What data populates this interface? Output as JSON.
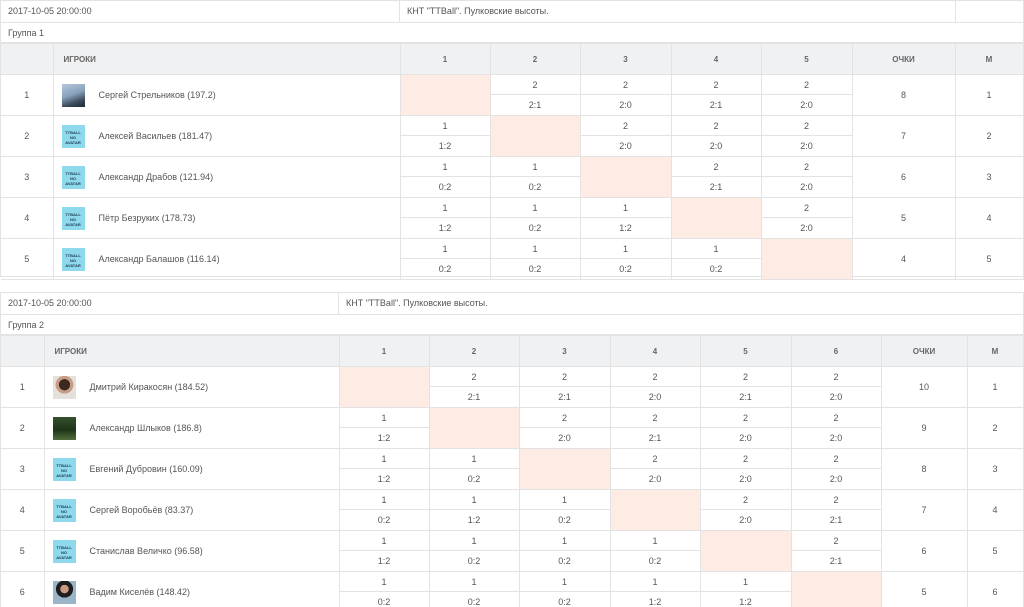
{
  "groups": [
    {
      "date": "2017-10-05 20:00:00",
      "venue": "КНТ \"TTBall\". Пулковские высоты.",
      "group_name": "Группа 1",
      "headers": {
        "players": "ИГРОКИ",
        "cols": [
          "1",
          "2",
          "3",
          "4",
          "5"
        ],
        "points": "ОЧКИ",
        "place": "М"
      },
      "players": [
        {
          "num": "1",
          "name": "Сергей Стрельников (197.2)",
          "avatar": "photo-1",
          "results": [
            null,
            [
              "2",
              "2:1"
            ],
            [
              "2",
              "2:0"
            ],
            [
              "2",
              "2:1"
            ],
            [
              "2",
              "2:0"
            ]
          ],
          "points": "8",
          "place": "1"
        },
        {
          "num": "2",
          "name": "Алексей Васильев (181.47)",
          "avatar": "ttball",
          "results": [
            [
              "1",
              "1:2"
            ],
            null,
            [
              "2",
              "2:0"
            ],
            [
              "2",
              "2:0"
            ],
            [
              "2",
              "2:0"
            ]
          ],
          "points": "7",
          "place": "2"
        },
        {
          "num": "3",
          "name": "Александр Драбов (121.94)",
          "avatar": "ttball",
          "results": [
            [
              "1",
              "0:2"
            ],
            [
              "1",
              "0:2"
            ],
            null,
            [
              "2",
              "2:1"
            ],
            [
              "2",
              "2:0"
            ]
          ],
          "points": "6",
          "place": "3"
        },
        {
          "num": "4",
          "name": "Пётр Безруких (178.73)",
          "avatar": "ttball",
          "results": [
            [
              "1",
              "1:2"
            ],
            [
              "1",
              "0:2"
            ],
            [
              "1",
              "1:2"
            ],
            null,
            [
              "2",
              "2:0"
            ]
          ],
          "points": "5",
          "place": "4"
        },
        {
          "num": "5",
          "name": "Александр Балашов (116.14)",
          "avatar": "ttball",
          "results": [
            [
              "1",
              "0:2"
            ],
            [
              "1",
              "0:2"
            ],
            [
              "1",
              "0:2"
            ],
            [
              "1",
              "0:2"
            ],
            null
          ],
          "points": "4",
          "place": "5"
        }
      ]
    },
    {
      "date": "2017-10-05 20:00:00",
      "venue": "КНТ \"TTBall\". Пулковские высоты.",
      "group_name": "Группа 2",
      "headers": {
        "players": "ИГРОКИ",
        "cols": [
          "1",
          "2",
          "3",
          "4",
          "5",
          "6"
        ],
        "points": "ОЧКИ",
        "place": "М"
      },
      "players": [
        {
          "num": "1",
          "name": "Дмитрий Киракосян (184.52)",
          "avatar": "photo-2",
          "results": [
            null,
            [
              "2",
              "2:1"
            ],
            [
              "2",
              "2:1"
            ],
            [
              "2",
              "2:0"
            ],
            [
              "2",
              "2:1"
            ],
            [
              "2",
              "2:0"
            ]
          ],
          "points": "10",
          "place": "1"
        },
        {
          "num": "2",
          "name": "Александр Шлыков (186.8)",
          "avatar": "photo-3",
          "results": [
            [
              "1",
              "1:2"
            ],
            null,
            [
              "2",
              "2:0"
            ],
            [
              "2",
              "2:1"
            ],
            [
              "2",
              "2:0"
            ],
            [
              "2",
              "2:0"
            ]
          ],
          "points": "9",
          "place": "2"
        },
        {
          "num": "3",
          "name": "Евгений Дубровин (160.09)",
          "avatar": "ttball",
          "results": [
            [
              "1",
              "1:2"
            ],
            [
              "1",
              "0:2"
            ],
            null,
            [
              "2",
              "2:0"
            ],
            [
              "2",
              "2:0"
            ],
            [
              "2",
              "2:0"
            ]
          ],
          "points": "8",
          "place": "3"
        },
        {
          "num": "4",
          "name": "Сергей Воробьёв (83.37)",
          "avatar": "ttball",
          "results": [
            [
              "1",
              "0:2"
            ],
            [
              "1",
              "1:2"
            ],
            [
              "1",
              "0:2"
            ],
            null,
            [
              "2",
              "2:0"
            ],
            [
              "2",
              "2:1"
            ]
          ],
          "points": "7",
          "place": "4"
        },
        {
          "num": "5",
          "name": "Станислав Величко (96.58)",
          "avatar": "ttball",
          "results": [
            [
              "1",
              "1:2"
            ],
            [
              "1",
              "0:2"
            ],
            [
              "1",
              "0:2"
            ],
            [
              "1",
              "0:2"
            ],
            null,
            [
              "2",
              "2:1"
            ]
          ],
          "points": "6",
          "place": "5"
        },
        {
          "num": "6",
          "name": "Вадим Киселёв (148.42)",
          "avatar": "photo-4",
          "results": [
            [
              "1",
              "0:2"
            ],
            [
              "1",
              "0:2"
            ],
            [
              "1",
              "0:2"
            ],
            [
              "1",
              "1:2"
            ],
            [
              "1",
              "1:2"
            ],
            null
          ],
          "points": "5",
          "place": "6"
        }
      ]
    }
  ],
  "ttball_avatar_text": [
    "TTBALL",
    "NO",
    "AVATAR"
  ],
  "colors": {
    "self_cell": "#fdebe4",
    "header_bg": "#f0f1f3",
    "border": "#e3e3e3",
    "ttball_avatar": "#8fd9ec"
  }
}
